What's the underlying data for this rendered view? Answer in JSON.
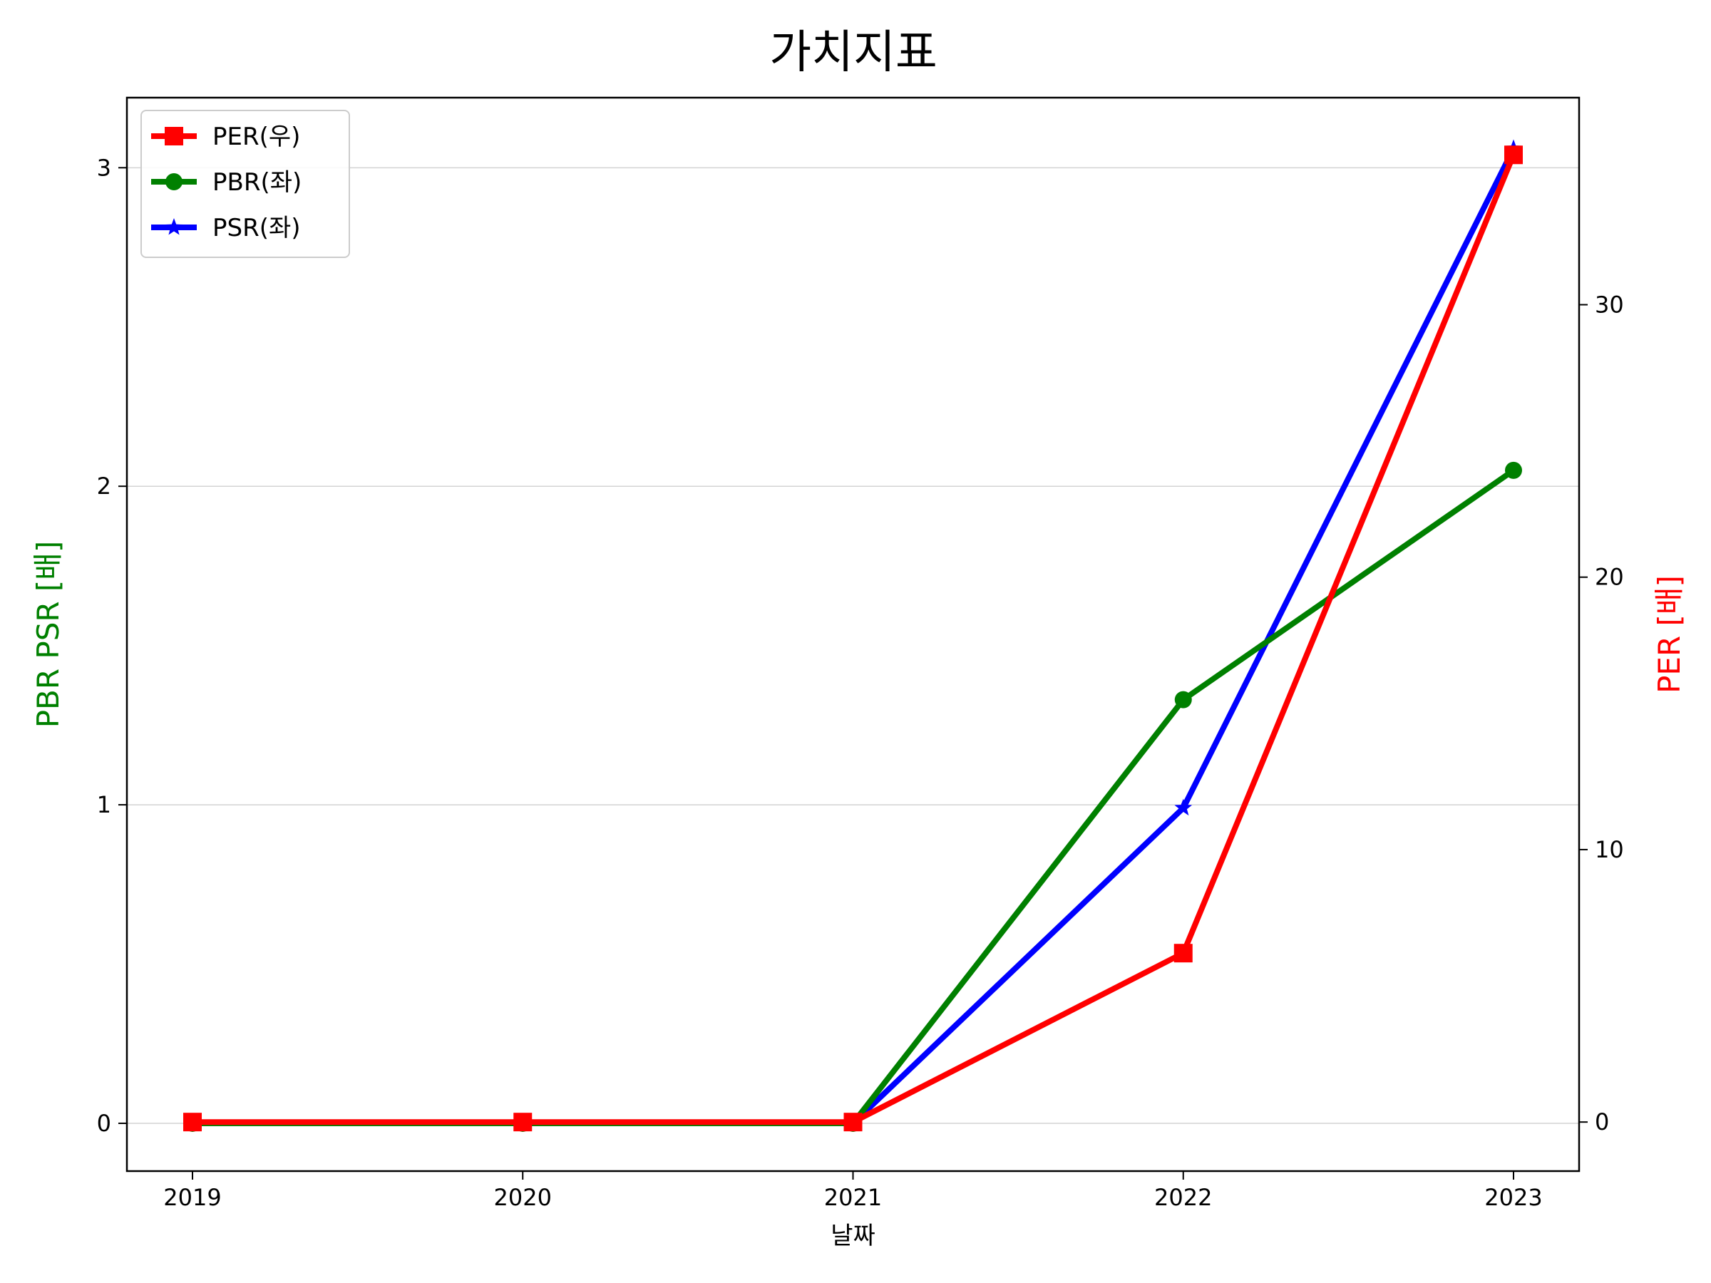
{
  "chart_data": {
    "type": "line",
    "title": "가치지표",
    "xlabel": "날짜",
    "ylabel_left": "PBR PSR [배]",
    "ylabel_right": "PER [배]",
    "ylabel_left_color": "#008000",
    "ylabel_right_color": "#ff0000",
    "categories": [
      "2019",
      "2020",
      "2021",
      "2022",
      "2023"
    ],
    "ylim_left": [
      -0.15,
      3.22
    ],
    "yticks_left": [
      0,
      1,
      2,
      3
    ],
    "ylim_right": [
      -1.8,
      37.6
    ],
    "yticks_right": [
      0,
      10,
      20,
      30
    ],
    "grid": "horizontal",
    "legend_position": "top-left",
    "series": [
      {
        "name": "PER(우)",
        "axis": "right",
        "color": "#ff0000",
        "marker": "square",
        "values": [
          0,
          0,
          0,
          6.2,
          35.5
        ]
      },
      {
        "name": "PBR(좌)",
        "axis": "left",
        "color": "#008000",
        "marker": "circle",
        "values": [
          0,
          0,
          0,
          1.33,
          2.05
        ]
      },
      {
        "name": "PSR(좌)",
        "axis": "left",
        "color": "#0000ff",
        "marker": "star",
        "values": [
          0,
          0,
          0,
          0.99,
          3.06
        ]
      }
    ]
  }
}
